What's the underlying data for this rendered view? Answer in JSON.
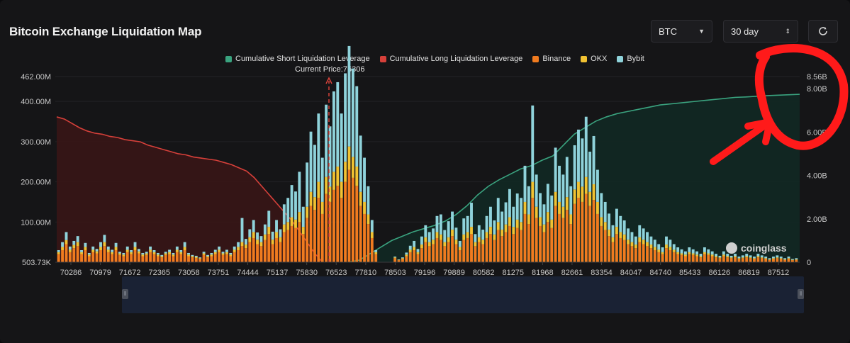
{
  "header": {
    "title": "Bitcoin Exchange Liquidation Map",
    "symbol_select": "BTC",
    "range_select": "30 day",
    "refresh_icon": "refresh-icon"
  },
  "watermark": "coinglass",
  "colors": {
    "short_cum": "#3aa37f",
    "long_cum": "#d6403a",
    "binance": "#f07b1f",
    "okx": "#f1c232",
    "bybit": "#8fd3db",
    "annotation": "#ff1a1a"
  },
  "chart_data": {
    "type": "bar",
    "title": "",
    "legend_position": "top-center",
    "current_price_label": "Current Price:76306",
    "current_price": 76306,
    "legend": [
      "Cumulative Short Liquidation Leverage",
      "Cumulative Long Liquidation Leverage",
      "Binance",
      "OKX",
      "Bybit"
    ],
    "x_ticks": [
      "70286",
      "70979",
      "71672",
      "72365",
      "73058",
      "73751",
      "74444",
      "75137",
      "75830",
      "76523",
      "77810",
      "78503",
      "79196",
      "79889",
      "80582",
      "81275",
      "81968",
      "82661",
      "83354",
      "84047",
      "84740",
      "85433",
      "86126",
      "86819",
      "87512"
    ],
    "y_left_ticks": [
      "462.00M",
      "400.00M",
      "300.00M",
      "200.00M",
      "100.00M",
      "503.73K"
    ],
    "y_left_range": [
      0.50373,
      462
    ],
    "y_right_ticks": [
      "8.56B",
      "8.00B",
      "6.00B",
      "4.00B",
      "2.00B",
      "0"
    ],
    "y_right_range": [
      0,
      8.56
    ],
    "bar_values_millions": {
      "binance": [
        20,
        30,
        45,
        25,
        35,
        40,
        20,
        30,
        15,
        25,
        22,
        30,
        40,
        25,
        20,
        30,
        18,
        15,
        25,
        20,
        30,
        22,
        15,
        18,
        25,
        20,
        15,
        12,
        18,
        20,
        15,
        25,
        20,
        30,
        15,
        12,
        10,
        8,
        18,
        12,
        15,
        20,
        25,
        18,
        20,
        15,
        25,
        30,
        40,
        35,
        50,
        60,
        45,
        40,
        55,
        70,
        45,
        60,
        50,
        75,
        80,
        90,
        85,
        100,
        70,
        110,
        140,
        130,
        160,
        120,
        170,
        150,
        180,
        190,
        160,
        200,
        230,
        210,
        190,
        140,
        120,
        95,
        60,
        20,
        0,
        0,
        0,
        0,
        10,
        5,
        8,
        15,
        25,
        30,
        20,
        35,
        50,
        40,
        45,
        60,
        55,
        40,
        50,
        65,
        45,
        30,
        55,
        60,
        70,
        40,
        50,
        45,
        60,
        70,
        55,
        80,
        65,
        75,
        90,
        70,
        85,
        80,
        120,
        95,
        160,
        110,
        90,
        75,
        100,
        85,
        140,
        120,
        110,
        130,
        95,
        145,
        160,
        150,
        170,
        140,
        155,
        120,
        90,
        80,
        65,
        50,
        70,
        60,
        55,
        45,
        40,
        35,
        50,
        45,
        40,
        35,
        30,
        25,
        20,
        35,
        30,
        25,
        20,
        18,
        15,
        20,
        18,
        15,
        12,
        20,
        18,
        15,
        12,
        10,
        15,
        12,
        10,
        12,
        8,
        10,
        12,
        10,
        8,
        12,
        10,
        8,
        6,
        8,
        10,
        8,
        6,
        8,
        5,
        6
      ],
      "okx": [
        5,
        8,
        10,
        6,
        8,
        10,
        5,
        8,
        4,
        6,
        5,
        8,
        10,
        6,
        5,
        8,
        4,
        4,
        6,
        5,
        8,
        5,
        4,
        4,
        6,
        5,
        4,
        3,
        4,
        5,
        4,
        6,
        5,
        8,
        4,
        3,
        3,
        2,
        4,
        3,
        4,
        5,
        6,
        4,
        5,
        4,
        6,
        8,
        10,
        9,
        12,
        15,
        11,
        10,
        14,
        18,
        11,
        15,
        12,
        19,
        20,
        22,
        21,
        25,
        18,
        28,
        35,
        32,
        40,
        30,
        42,
        38,
        45,
        48,
        40,
        50,
        58,
        52,
        48,
        35,
        30,
        24,
        15,
        5,
        0,
        0,
        0,
        0,
        2,
        1,
        2,
        4,
        6,
        8,
        5,
        9,
        12,
        10,
        11,
        15,
        14,
        10,
        12,
        16,
        11,
        8,
        14,
        15,
        18,
        10,
        12,
        11,
        15,
        18,
        14,
        20,
        16,
        19,
        22,
        18,
        21,
        20,
        30,
        24,
        40,
        28,
        22,
        19,
        25,
        21,
        35,
        30,
        28,
        32,
        24,
        36,
        40,
        38,
        42,
        35,
        39,
        30,
        22,
        20,
        16,
        12,
        18,
        15,
        14,
        11,
        10,
        9,
        12,
        11,
        10,
        9,
        8,
        6,
        5,
        9,
        8,
        6,
        5,
        4,
        4,
        5,
        4,
        4,
        3,
        5,
        4,
        4,
        3,
        2,
        4,
        3,
        2,
        3,
        2,
        2,
        3,
        2,
        2,
        3,
        2,
        2,
        1,
        2,
        2,
        2,
        1,
        2,
        1,
        1
      ],
      "bybit": [
        5,
        12,
        20,
        8,
        10,
        15,
        5,
        10,
        4,
        8,
        6,
        12,
        18,
        8,
        6,
        10,
        4,
        4,
        8,
        5,
        12,
        6,
        4,
        4,
        8,
        5,
        4,
        3,
        4,
        6,
        4,
        8,
        5,
        12,
        4,
        3,
        3,
        2,
        4,
        3,
        4,
        6,
        8,
        4,
        6,
        4,
        8,
        12,
        60,
        14,
        20,
        30,
        18,
        15,
        25,
        40,
        20,
        30,
        20,
        50,
        60,
        80,
        70,
        100,
        50,
        110,
        150,
        130,
        170,
        110,
        180,
        150,
        200,
        210,
        170,
        220,
        250,
        220,
        200,
        140,
        110,
        70,
        30,
        5,
        0,
        0,
        0,
        0,
        2,
        1,
        2,
        5,
        10,
        15,
        8,
        20,
        30,
        25,
        28,
        40,
        50,
        30,
        40,
        45,
        30,
        15,
        40,
        40,
        60,
        20,
        30,
        25,
        40,
        50,
        35,
        60,
        45,
        55,
        70,
        50,
        65,
        60,
        90,
        70,
        190,
        80,
        60,
        50,
        70,
        60,
        110,
        90,
        80,
        100,
        70,
        110,
        130,
        120,
        150,
        100,
        120,
        80,
        60,
        50,
        40,
        30,
        45,
        40,
        35,
        28,
        25,
        20,
        30,
        28,
        25,
        20,
        18,
        14,
        12,
        20,
        18,
        14,
        12,
        10,
        8,
        12,
        10,
        8,
        6,
        12,
        10,
        8,
        6,
        4,
        8,
        6,
        4,
        6,
        4,
        5,
        6,
        5,
        4,
        6,
        5,
        4,
        3,
        4,
        5,
        4,
        3,
        4,
        2,
        3
      ]
    },
    "cumulative_long_billions": [
      6.7,
      6.6,
      6.4,
      6.2,
      6.05,
      5.95,
      5.9,
      5.8,
      5.75,
      5.65,
      5.6,
      5.55,
      5.4,
      5.3,
      5.2,
      5.1,
      5.0,
      4.95,
      4.85,
      4.8,
      4.75,
      4.7,
      4.6,
      4.5,
      4.35,
      4.2,
      3.9,
      3.5,
      3.1,
      2.7,
      2.3,
      1.9,
      1.4,
      0.9,
      0.4,
      0.0
    ],
    "cumulative_short_billions": [
      0.0,
      0.1,
      0.4,
      0.7,
      1.0,
      1.2,
      1.4,
      1.55,
      1.7,
      1.9,
      2.2,
      2.6,
      3.1,
      3.5,
      3.8,
      4.05,
      4.3,
      4.45,
      4.7,
      4.9,
      5.4,
      5.9,
      6.2,
      6.5,
      6.7,
      6.85,
      6.95,
      7.05,
      7.15,
      7.25,
      7.3,
      7.35,
      7.4,
      7.45,
      7.5,
      7.55,
      7.6,
      7.62,
      7.65,
      7.68,
      7.7,
      7.72,
      7.74
    ]
  }
}
